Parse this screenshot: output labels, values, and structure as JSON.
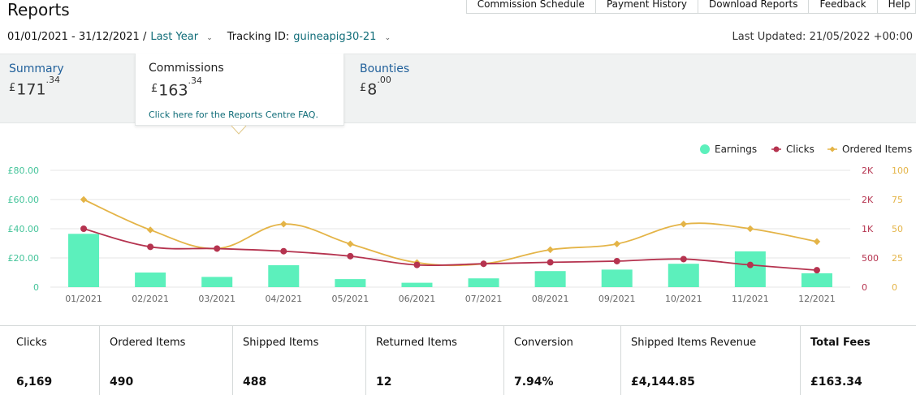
{
  "page": {
    "title": "Reports"
  },
  "top_nav": [
    "Commission Schedule",
    "Payment History",
    "Download Reports",
    "Feedback",
    "Help"
  ],
  "filters": {
    "date_range": "01/01/2021 - 31/12/2021 /",
    "period_link": "Last Year",
    "tracking_label": "Tracking ID:",
    "tracking_id": "guineapig30-21",
    "last_updated": "Last Updated: 21/05/2022 +00:00"
  },
  "summary": {
    "summary": {
      "label": "Summary",
      "currency": "£",
      "whole": "171",
      "fraction": ".34"
    },
    "commissions": {
      "label": "Commissions",
      "currency": "£",
      "whole": "163",
      "fraction": ".34",
      "faq": "Click here for the Reports Centre FAQ."
    },
    "bounties": {
      "label": "Bounties",
      "currency": "£",
      "whole": "8",
      "fraction": ".00"
    }
  },
  "colors": {
    "earnings": "#5cf0bc",
    "clicks": "#b5334f",
    "ordered": "#e4b447",
    "left_axis": "#44c49a",
    "link": "#0f6c78"
  },
  "chart_data": {
    "type": "bar",
    "categories": [
      "01/2021",
      "02/2021",
      "03/2021",
      "04/2021",
      "05/2021",
      "06/2021",
      "07/2021",
      "08/2021",
      "09/2021",
      "10/2021",
      "11/2021",
      "12/2021"
    ],
    "legend": [
      "Earnings",
      "Clicks",
      "Ordered Items"
    ],
    "legend_position": "top-right",
    "left_axis": {
      "ticks": [
        "£80.00",
        "£60.00",
        "£40.00",
        "£20.00",
        "0"
      ],
      "range": [
        0,
        80
      ]
    },
    "clicks_axis": {
      "ticks": [
        "2K",
        "2K",
        "1K",
        "500",
        "0"
      ],
      "range": [
        0,
        2000
      ]
    },
    "ordered_axis": {
      "ticks": [
        "100",
        "75",
        "50",
        "25",
        "0"
      ],
      "range": [
        0,
        100
      ]
    },
    "series": [
      {
        "name": "Earnings",
        "type": "bar",
        "axis": "left",
        "values": [
          36.5,
          10.0,
          7.0,
          15.0,
          5.5,
          3.0,
          6.0,
          11.0,
          12.0,
          16.0,
          24.5,
          9.5
        ]
      },
      {
        "name": "Clicks",
        "type": "line",
        "axis": "clicks",
        "values": [
          1000,
          690,
          660,
          615,
          530,
          380,
          400,
          425,
          445,
          480,
          380,
          290
        ]
      },
      {
        "name": "Ordered Items",
        "type": "line",
        "axis": "ordered",
        "values": [
          75,
          49,
          33,
          54,
          37,
          21,
          20,
          32,
          37,
          54,
          50,
          39
        ]
      }
    ],
    "grid": true
  },
  "stats": [
    {
      "label": "Clicks",
      "value": "6,169"
    },
    {
      "label": "Ordered Items",
      "value": "490"
    },
    {
      "label": "Shipped Items",
      "value": "488"
    },
    {
      "label": "Returned Items",
      "value": "12"
    },
    {
      "label": "Conversion",
      "value": "7.94%"
    },
    {
      "label": "Shipped Items Revenue",
      "value": "£4,144.85"
    },
    {
      "label": "Total Fees",
      "value": "£163.34"
    }
  ]
}
